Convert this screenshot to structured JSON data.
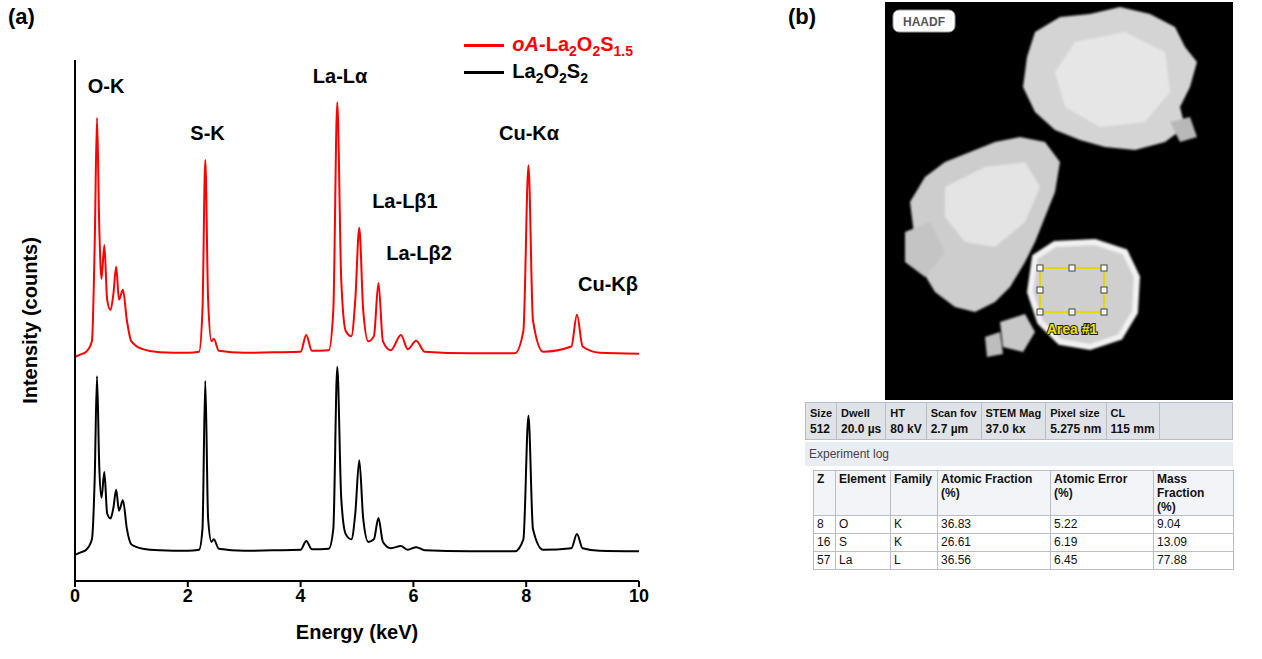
{
  "panel_labels": [
    "(a)",
    "(b)"
  ],
  "chart_data": {
    "type": "line",
    "x_label": "Energy (keV)",
    "y_label": "Intensity (counts)",
    "x": [
      0,
      0.1,
      0.2,
      0.3,
      0.35,
      0.39,
      0.43,
      0.47,
      0.52,
      0.57,
      0.63,
      0.68,
      0.73,
      0.78,
      0.85,
      0.92,
      1.0,
      1.2,
      1.5,
      2.0,
      2.2,
      2.26,
      2.31,
      2.36,
      2.42,
      2.46,
      2.55,
      3.0,
      3.5,
      4.0,
      4.1,
      4.2,
      4.5,
      4.58,
      4.65,
      4.72,
      4.8,
      4.9,
      4.97,
      5.04,
      5.11,
      5.2,
      5.3,
      5.38,
      5.46,
      5.6,
      5.78,
      5.9,
      6.05,
      6.2,
      7.0,
      7.8,
      7.95,
      8.04,
      8.12,
      8.3,
      8.8,
      8.9,
      9.0,
      9.3,
      10
    ],
    "series": [
      {
        "name": "oA-La2O2S1.5",
        "color": "#ff0000",
        "values": [
          43.0,
          43.5,
          44.0,
          46,
          65,
          88.9,
          68,
          58,
          64.5,
          54,
          52,
          55,
          60.3,
          54,
          55.9,
          50,
          46,
          44.5,
          43.9,
          43.8,
          44.0,
          52,
          80.8,
          54,
          46,
          46.5,
          44.2,
          43.8,
          43.9,
          44.0,
          47.2,
          44.2,
          44.3,
          52,
          91.9,
          58,
          48,
          47,
          54,
          67.8,
          52,
          46,
          47,
          57.2,
          46,
          44.3,
          47.2,
          44.5,
          46.1,
          44.0,
          43.7,
          43.7,
          48,
          79.8,
          50,
          44.0,
          45,
          51.1,
          45,
          43.8,
          43.6
        ]
      },
      {
        "name": "La2O2S2",
        "color": "#000000",
        "values": [
          5.0,
          5.5,
          6.0,
          8.0,
          20,
          39.3,
          22,
          16,
          20.9,
          13,
          12,
          14,
          17.5,
          13.5,
          15.5,
          10,
          7,
          6.2,
          5.9,
          5.8,
          6.0,
          10,
          38.4,
          12,
          7.5,
          8.0,
          6.2,
          5.8,
          5.9,
          6.0,
          7.7,
          6.1,
          6.2,
          10,
          41.1,
          16,
          9,
          8,
          13,
          23.2,
          12,
          7.5,
          8,
          12.1,
          7.5,
          6.3,
          6.7,
          6.0,
          6.5,
          5.9,
          5.7,
          5.7,
          8,
          31.7,
          10,
          6.0,
          6.3,
          9.0,
          6.3,
          5.8,
          5.7
        ]
      }
    ],
    "xlim": [
      0,
      10
    ],
    "xticks": [
      0,
      2,
      4,
      6,
      8,
      10
    ],
    "ylim": [
      0,
      100
    ],
    "tick_labels": "x",
    "grid": false,
    "legend": "upper right",
    "annotations": [
      {
        "text": "O-K",
        "x": 0.55,
        "y": 95
      },
      {
        "text": "S-K",
        "x": 2.35,
        "y": 86
      },
      {
        "text": "La-Lα",
        "x": 4.7,
        "y": 97
      },
      {
        "text": "La-Lβ1",
        "x": 5.85,
        "y": 73
      },
      {
        "text": "La-Lβ2",
        "x": 6.1,
        "y": 63
      },
      {
        "text": "Cu-Kα",
        "x": 8.05,
        "y": 86
      },
      {
        "text": "Cu-Kβ",
        "x": 9.45,
        "y": 57
      }
    ]
  },
  "screenshot": {
    "image_label": "HAADF",
    "area_label": "Area #1",
    "info": [
      {
        "label": "Size",
        "value": "512"
      },
      {
        "label": "Dwell",
        "value": "20.0 µs"
      },
      {
        "label": "HT",
        "value": "80 kV"
      },
      {
        "label": "Scan fov",
        "value": "2.7 µm"
      },
      {
        "label": "STEM Mag",
        "value": "37.0 kx"
      },
      {
        "label": "Pixel size",
        "value": "5.275 nm"
      },
      {
        "label": "CL",
        "value": "115 mm"
      }
    ],
    "log_title": "Experiment log",
    "table": {
      "header": [
        "Z",
        "Element",
        "Family",
        "Atomic Fraction (%)",
        "Atomic Error (%)",
        "Mass Fraction (%)"
      ],
      "rows": [
        [
          "8",
          "O",
          "K",
          "36.83",
          "5.22",
          "9.04"
        ],
        [
          "16",
          "S",
          "K",
          "26.61",
          "6.19",
          "13.09"
        ],
        [
          "57",
          "La",
          "L",
          "36.56",
          "6.45",
          "77.88"
        ]
      ]
    }
  }
}
